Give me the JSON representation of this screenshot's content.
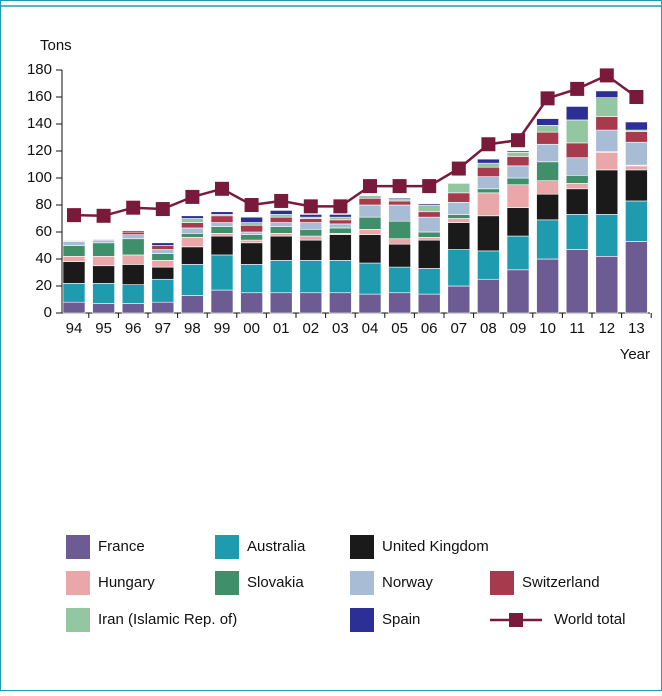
{
  "chart_data": {
    "type": "bar",
    "stacked": true,
    "ylabel": "Tons",
    "xlabel": "Year",
    "categories": [
      "94",
      "95",
      "96",
      "97",
      "98",
      "99",
      "00",
      "01",
      "02",
      "03",
      "04",
      "05",
      "06",
      "07",
      "08",
      "09",
      "10",
      "11",
      "12",
      "13"
    ],
    "ylim": [
      0,
      180
    ],
    "yticks": [
      0,
      20,
      40,
      60,
      80,
      100,
      120,
      140,
      160,
      180
    ],
    "series": [
      {
        "name": "France",
        "color": "#6d5b94",
        "values": [
          8,
          7,
          7,
          8,
          13,
          17,
          15,
          15,
          15,
          15,
          14,
          15,
          14,
          20,
          25,
          32,
          40,
          47,
          42,
          53
        ]
      },
      {
        "name": "Australia",
        "color": "#1f9bb0",
        "values": [
          14,
          15,
          14,
          17,
          23,
          26,
          21,
          24,
          24,
          24,
          23,
          19,
          19,
          27,
          21,
          25,
          29,
          26,
          31,
          30
        ]
      },
      {
        "name": "United Kingdom",
        "color": "#1a1a1a",
        "values": [
          16,
          13,
          15,
          9,
          13,
          14,
          16,
          18,
          15,
          19,
          21,
          17,
          21,
          20,
          26,
          21,
          19,
          19,
          33,
          23
        ]
      },
      {
        "name": "Hungary",
        "color": "#eaa7a9",
        "values": [
          4,
          7,
          7,
          5,
          7,
          2,
          2,
          2,
          3,
          1,
          4,
          4,
          2,
          3,
          17,
          17,
          10,
          4,
          13,
          3
        ]
      },
      {
        "name": "Slovakia",
        "color": "#3f8f6b",
        "values": [
          8,
          10,
          12,
          5,
          3,
          5,
          4,
          5,
          5,
          4,
          9,
          13,
          4,
          3,
          3,
          5,
          14,
          6,
          0.5,
          0.5
        ]
      },
      {
        "name": "Norway",
        "color": "#a9bcd6",
        "values": [
          3,
          2,
          3,
          3,
          4,
          3,
          2,
          3,
          5,
          3,
          9,
          12,
          11,
          9,
          9,
          9,
          13,
          13,
          16,
          17
        ]
      },
      {
        "name": "Switzerland",
        "color": "#a83a4e",
        "values": [
          0.5,
          0.5,
          2,
          3,
          4,
          5,
          5,
          4,
          3,
          3,
          5,
          3,
          4,
          7,
          7,
          7,
          9,
          11,
          10,
          8
        ]
      },
      {
        "name": "Iran (Islamic Rep. of)",
        "color": "#92c7a2",
        "values": [
          0,
          0,
          0,
          0,
          3,
          1,
          2,
          2,
          1,
          2,
          2,
          1,
          5,
          7,
          3,
          3,
          5,
          17,
          14,
          1
        ]
      },
      {
        "name": "Spain",
        "color": "#2b2f96",
        "values": [
          0.5,
          0.5,
          1,
          2,
          2,
          2,
          4,
          3,
          2,
          2,
          0,
          1,
          1,
          0.5,
          3,
          1,
          5,
          10,
          5,
          6
        ]
      },
      {
        "name": "World total",
        "color": "#7a1a3b",
        "type": "line",
        "values": [
          72.5,
          72,
          78,
          77,
          86,
          92,
          80,
          83,
          79,
          79,
          94,
          94,
          94,
          107,
          125,
          128,
          159,
          166,
          176,
          160
        ]
      }
    ]
  }
}
